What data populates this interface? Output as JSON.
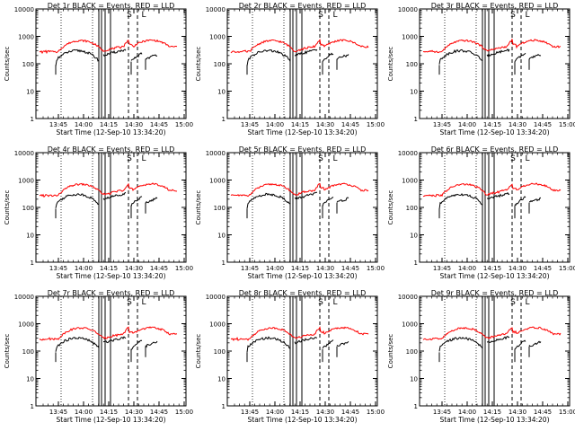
{
  "page": {
    "background": "#ffffff"
  },
  "colors": {
    "events": "#000000",
    "lld": "#ff0000",
    "axes": "#000000"
  },
  "chart_data": [
    {
      "type": "line",
      "title": "Det 1r BLACK = Events, RED = LLD",
      "xlabel": "Start Time (12-Sep-10 13:34:20)",
      "ylabel": "Counts/sec",
      "ylog": true,
      "ylim": [
        1,
        10000
      ],
      "x_ticks": [
        "13:45",
        "14:00",
        "14:15",
        "14:30",
        "14:45",
        "15:00"
      ],
      "y_ticks": [
        "1",
        "10",
        "100",
        "1000",
        "10000"
      ],
      "markers": [
        "S",
        "L"
      ],
      "series": [
        {
          "name": "Events",
          "color": "#000000"
        },
        {
          "name": "LLD",
          "color": "#ff0000"
        }
      ]
    },
    {
      "type": "line",
      "title": "Det 2r BLACK = Events, RED = LLD",
      "xlabel": "Start Time (12-Sep-10 13:34:20)",
      "ylabel": "Counts/sec",
      "ylog": true,
      "ylim": [
        1,
        10000
      ],
      "x_ticks": [
        "13:45",
        "14:00",
        "14:15",
        "14:30",
        "14:45",
        "15:00"
      ],
      "y_ticks": [
        "1",
        "10",
        "100",
        "1000",
        "10000"
      ],
      "markers": [
        "S",
        "L"
      ],
      "series": [
        {
          "name": "Events",
          "color": "#000000"
        },
        {
          "name": "LLD",
          "color": "#ff0000"
        }
      ]
    },
    {
      "type": "line",
      "title": "Det 3r BLACK = Events, RED = LLD",
      "xlabel": "Start Time (12-Sep-10 13:34:20)",
      "ylabel": "Counts/sec",
      "ylog": true,
      "ylim": [
        1,
        10000
      ],
      "x_ticks": [
        "13:45",
        "14:00",
        "14:15",
        "14:30",
        "14:45",
        "15:00"
      ],
      "y_ticks": [
        "1",
        "10",
        "100",
        "1000",
        "10000"
      ],
      "markers": [
        "S",
        "L"
      ],
      "series": [
        {
          "name": "Events",
          "color": "#000000"
        },
        {
          "name": "LLD",
          "color": "#ff0000"
        }
      ]
    },
    {
      "type": "line",
      "title": "Det 4r BLACK = Events, RED = LLD",
      "xlabel": "Start Time (12-Sep-10 13:34:20)",
      "ylabel": "Counts/sec",
      "ylog": true,
      "ylim": [
        1,
        10000
      ],
      "x_ticks": [
        "13:45",
        "14:00",
        "14:15",
        "14:30",
        "14:45",
        "15:00"
      ],
      "y_ticks": [
        "1",
        "10",
        "100",
        "1000",
        "10000"
      ],
      "markers": [
        "S",
        "L"
      ],
      "series": [
        {
          "name": "Events",
          "color": "#000000"
        },
        {
          "name": "LLD",
          "color": "#ff0000"
        }
      ]
    },
    {
      "type": "line",
      "title": "Det 5r BLACK = Events, RED = LLD",
      "xlabel": "Start Time (12-Sep-10 13:34:20)",
      "ylabel": "Counts/sec",
      "ylog": true,
      "ylim": [
        1,
        10000
      ],
      "x_ticks": [
        "13:45",
        "14:00",
        "14:15",
        "14:30",
        "14:45",
        "15:00"
      ],
      "y_ticks": [
        "1",
        "10",
        "100",
        "1000",
        "10000"
      ],
      "markers": [
        "S",
        "L"
      ],
      "series": [
        {
          "name": "Events",
          "color": "#000000"
        },
        {
          "name": "LLD",
          "color": "#ff0000"
        }
      ]
    },
    {
      "type": "line",
      "title": "Det 6r BLACK = Events, RED = LLD",
      "xlabel": "Start Time (12-Sep-10 13:34:20)",
      "ylabel": "Counts/sec",
      "ylog": true,
      "ylim": [
        1,
        10000
      ],
      "x_ticks": [
        "13:45",
        "14:00",
        "14:15",
        "14:30",
        "14:45",
        "15:00"
      ],
      "y_ticks": [
        "1",
        "10",
        "100",
        "1000",
        "10000"
      ],
      "markers": [
        "S",
        "L"
      ],
      "series": [
        {
          "name": "Events",
          "color": "#000000"
        },
        {
          "name": "LLD",
          "color": "#ff0000"
        }
      ]
    },
    {
      "type": "line",
      "title": "Det 7r BLACK = Events, RED = LLD",
      "xlabel": "Start Time (12-Sep-10 13:34:20)",
      "ylabel": "Counts/sec",
      "ylog": true,
      "ylim": [
        1,
        10000
      ],
      "x_ticks": [
        "13:45",
        "14:00",
        "14:15",
        "14:30",
        "14:45",
        "15:00"
      ],
      "y_ticks": [
        "1",
        "10",
        "100",
        "1000",
        "10000"
      ],
      "markers": [
        "S",
        "L"
      ],
      "series": [
        {
          "name": "Events",
          "color": "#000000"
        },
        {
          "name": "LLD",
          "color": "#ff0000"
        }
      ]
    },
    {
      "type": "line",
      "title": "Det 8r BLACK = Events, RED = LLD",
      "xlabel": "Start Time (12-Sep-10 13:34:20)",
      "ylabel": "Counts/sec",
      "ylog": true,
      "ylim": [
        1,
        10000
      ],
      "x_ticks": [
        "13:45",
        "14:00",
        "14:15",
        "14:30",
        "14:45",
        "15:00"
      ],
      "y_ticks": [
        "1",
        "10",
        "100",
        "1000",
        "10000"
      ],
      "markers": [
        "S",
        "L"
      ],
      "series": [
        {
          "name": "Events",
          "color": "#000000"
        },
        {
          "name": "LLD",
          "color": "#ff0000"
        }
      ]
    },
    {
      "type": "line",
      "title": "Det 9r BLACK = Events, RED = LLD",
      "xlabel": "Start Time (12-Sep-10 13:34:20)",
      "ylabel": "Counts/sec",
      "ylog": true,
      "ylim": [
        1,
        10000
      ],
      "x_ticks": [
        "13:45",
        "14:00",
        "14:15",
        "14:30",
        "14:45",
        "15:00"
      ],
      "y_ticks": [
        "1",
        "10",
        "100",
        "1000",
        "10000"
      ],
      "markers": [
        "S",
        "L"
      ],
      "series": [
        {
          "name": "Events",
          "color": "#000000"
        },
        {
          "name": "LLD",
          "color": "#ff0000"
        }
      ]
    }
  ]
}
